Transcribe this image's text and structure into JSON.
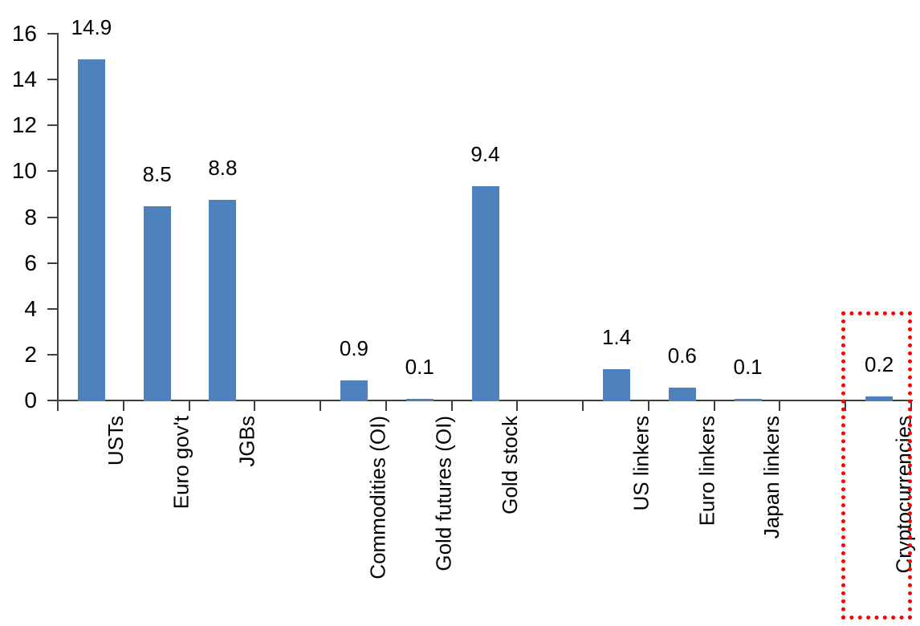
{
  "chart_data": {
    "type": "bar",
    "title": "",
    "xlabel": "",
    "ylabel": "",
    "categories": [
      "USTs",
      "Euro gov't",
      "JGBs",
      "",
      "Commodities (OI)",
      "Gold futures (OI)",
      "Gold stock",
      "",
      "US linkers",
      "Euro linkers",
      "Japan linkers",
      "",
      "Cryptocurrencies"
    ],
    "values": [
      14.9,
      8.5,
      8.8,
      null,
      0.9,
      0.1,
      9.4,
      null,
      1.4,
      0.6,
      0.1,
      null,
      0.2
    ],
    "data_labels": [
      "14.9",
      "8.5",
      "8.8",
      null,
      "0.9",
      "0.1",
      "9.4",
      null,
      "1.4",
      "0.6",
      "0.1",
      null,
      "0.2"
    ],
    "ylim": [
      0,
      16
    ],
    "yticks": [
      "0",
      "2",
      "4",
      "6",
      "8",
      "10",
      "12",
      "14",
      "16"
    ],
    "grid": false,
    "legend": false,
    "bar_color": "#4F81BD",
    "axis_color": "#404040",
    "label_color": "#000000",
    "highlight": {
      "category": "Cryptocurrencies",
      "style": "dotted-box",
      "box_color": "#FF0000"
    }
  }
}
